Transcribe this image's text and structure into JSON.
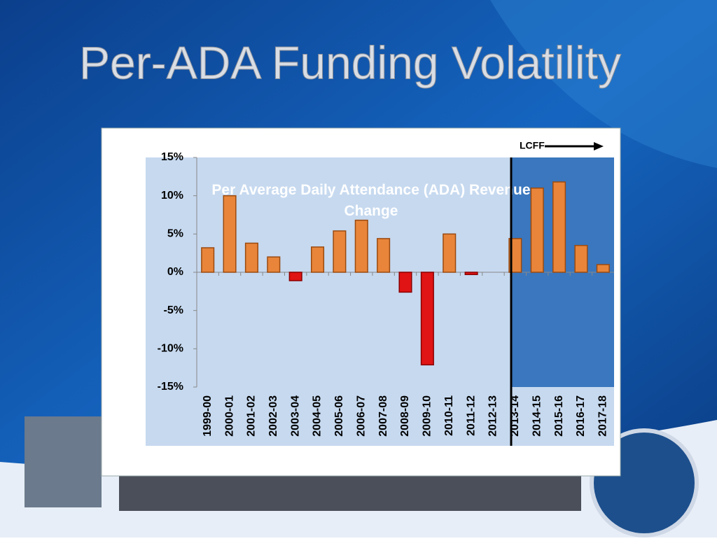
{
  "slide_title": "Per-ADA Funding Volatility",
  "chart_data": {
    "type": "bar",
    "title": "Per Average Daily Attendance (ADA) Revenue Change",
    "annotation": "LCFF",
    "categories": [
      "1999-00",
      "2000-01",
      "2001-02",
      "2002-03",
      "2003-04",
      "2004-05",
      "2005-06",
      "2006-07",
      "2007-08",
      "2008-09",
      "2009-10",
      "2010-11",
      "2011-12",
      "2012-13",
      "2013-14",
      "2014-15",
      "2015-16",
      "2016-17",
      "2017-18"
    ],
    "values": [
      3.2,
      10.0,
      3.8,
      2.0,
      -1.1,
      3.3,
      5.4,
      6.8,
      4.4,
      -2.6,
      -12.1,
      5.0,
      -0.3,
      0,
      4.4,
      11.0,
      11.8,
      3.5,
      1.0
    ],
    "color": "#e8853a",
    "negative_color": "#e01414",
    "ylim": [
      -15,
      15
    ],
    "yticks": [
      {
        "value": 15,
        "label": "15%"
      },
      {
        "value": 10,
        "label": "10%"
      },
      {
        "value": 5,
        "label": "5%"
      },
      {
        "value": 0,
        "label": "0%"
      },
      {
        "value": -5,
        "label": "-5%"
      },
      {
        "value": -10,
        "label": "-10%"
      },
      {
        "value": -15,
        "label": "-15%"
      }
    ]
  }
}
